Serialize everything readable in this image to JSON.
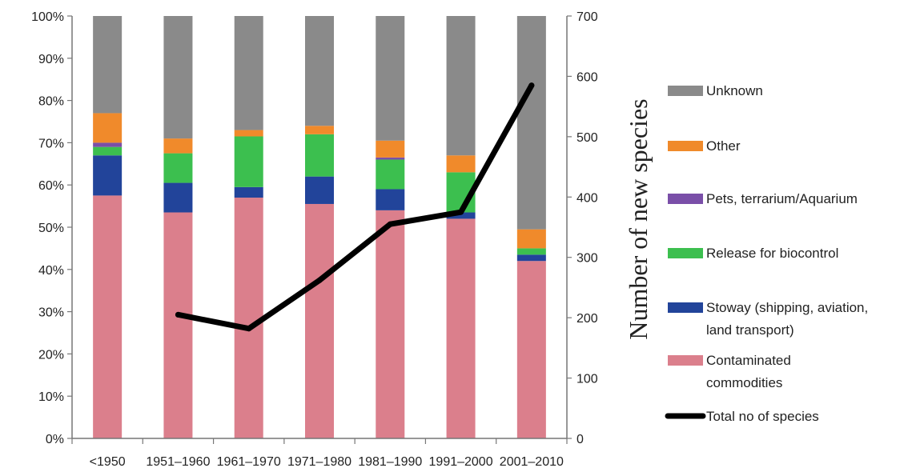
{
  "chart_data": {
    "type": "bar",
    "stacked": true,
    "categories": [
      "<1950",
      "1951–1960",
      "1961–1970",
      "1971–1980",
      "1981–1990",
      "1991–2000",
      "2001–2010"
    ],
    "series": [
      {
        "name": "Contaminated commodities",
        "legend_lines": [
          "Contaminated",
          "commodities"
        ],
        "color": "#db7f8c",
        "values": [
          57.5,
          53.5,
          57,
          55.5,
          54,
          52,
          42
        ]
      },
      {
        "name": "Stoway (shipping, aviation, land transport)",
        "legend_lines": [
          "Stoway (shipping, aviation,",
          "land transport)"
        ],
        "color": "#22449a",
        "values": [
          9.5,
          7,
          2.5,
          6.5,
          5,
          1.5,
          1.5
        ]
      },
      {
        "name": "Release for biocontrol",
        "legend_lines": [
          "Release for biocontrol"
        ],
        "color": "#3cbf4f",
        "values": [
          2,
          7,
          12,
          10,
          7,
          9.5,
          1.5
        ]
      },
      {
        "name": "Pets, terrarium/Aquarium",
        "legend_lines": [
          "Pets, terrarium/Aquarium"
        ],
        "color": "#7a4fa8",
        "values": [
          1,
          0,
          0,
          0,
          0.5,
          0,
          0
        ]
      },
      {
        "name": "Other",
        "legend_lines": [
          "Other"
        ],
        "color": "#f08a2b",
        "values": [
          7,
          3.5,
          1.5,
          2,
          4,
          4,
          4.5
        ]
      },
      {
        "name": "Unknown",
        "legend_lines": [
          "Unknown"
        ],
        "color": "#8a8a8a",
        "values": [
          23,
          29,
          27,
          26,
          29.5,
          33,
          50.5
        ]
      }
    ],
    "line_series": {
      "name": "Total no of species",
      "legend_lines": [
        "Total no of species"
      ],
      "color": "#000000",
      "axis": "right",
      "values": [
        null,
        205,
        182,
        262,
        355,
        375,
        585
      ]
    },
    "y_axis": {
      "ylim": [
        0,
        100
      ],
      "ticks": [
        0,
        10,
        20,
        30,
        40,
        50,
        60,
        70,
        80,
        90,
        100
      ],
      "tick_suffix": "%"
    },
    "y2_axis": {
      "label": "Number of new species",
      "ylim": [
        0,
        700
      ],
      "ticks": [
        0,
        100,
        200,
        300,
        400,
        500,
        600,
        700
      ]
    },
    "legend_order": [
      "Unknown",
      "Other",
      "Pets, terrarium/Aquarium",
      "Release for biocontrol",
      "Stoway (shipping, aviation, land transport)",
      "Contaminated commodities",
      "Total no of species"
    ],
    "legend_position": "right",
    "grid": false
  }
}
